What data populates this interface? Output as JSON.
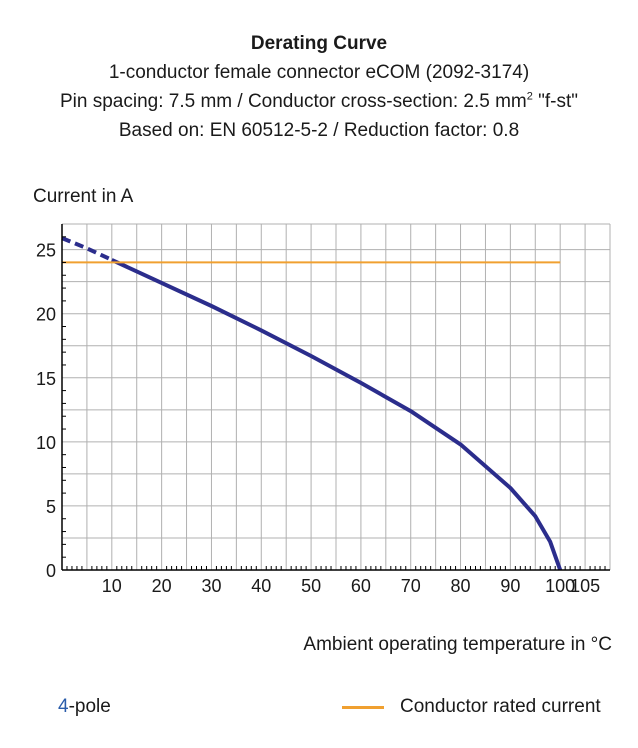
{
  "colors": {
    "curve": "#2b2d8c",
    "rated": "#f0a030",
    "grid": "#b0b0b0",
    "axis": "#000000",
    "legend_number": "#2a5caa"
  },
  "chart_data": {
    "type": "line",
    "title": "Derating Curve",
    "subtitle_lines": {
      "line1": "1-conductor female connector eCOM (2092-3174)",
      "line2_a": "Pin spacing: 7.5 mm / Conductor cross-section: 2.5 mm",
      "line2_sup": "2",
      "line2_b": " \"f-st\"",
      "line3": "Based on: EN 60512-5-2 / Reduction factor: 0.8"
    },
    "ylabel": "Current in A",
    "xlabel": "Ambient operating temperature in °C",
    "xlim": [
      0,
      110
    ],
    "ylim": [
      0,
      27
    ],
    "x_ticks": [
      10,
      20,
      30,
      40,
      50,
      60,
      70,
      80,
      90,
      100,
      105
    ],
    "y_ticks": [
      0,
      5,
      10,
      15,
      20,
      25
    ],
    "grid": true,
    "series": [
      {
        "name": "4-pole",
        "style": "solid",
        "x": [
          10,
          20,
          30,
          40,
          50,
          60,
          70,
          80,
          90,
          95,
          98,
          100
        ],
        "y": [
          24.2,
          22.4,
          20.6,
          18.7,
          16.7,
          14.6,
          12.4,
          9.8,
          6.4,
          4.2,
          2.2,
          0
        ]
      },
      {
        "name": "4-pole-extrapolated",
        "style": "dashed",
        "x": [
          0,
          5,
          10
        ],
        "y": [
          25.9,
          25.1,
          24.2
        ]
      },
      {
        "name": "Conductor rated current",
        "style": "solid",
        "x": [
          0,
          100
        ],
        "y": [
          24,
          24
        ]
      }
    ],
    "legend": {
      "pole_number": "4",
      "pole_suffix": "-pole",
      "rated": "Conductor rated current",
      "placement": "bottom"
    }
  }
}
